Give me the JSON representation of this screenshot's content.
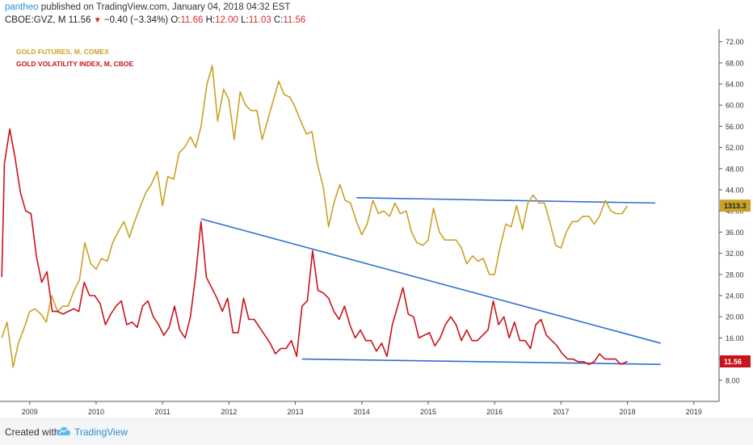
{
  "header": {
    "publisher": "pantheo",
    "published_text": " published on TradingView.com, January 04, 2018 04:32 EST",
    "symbol": "CBOE:GVZ, M",
    "last": "11.56",
    "change": "−0.40 (−3.34%)",
    "o_label": "O:",
    "o_value": "11.66",
    "h_label": "H:",
    "h_value": "12.00",
    "l_label": "L:",
    "l_value": "11.03",
    "c_label": "C:",
    "c_value": "11.56"
  },
  "footer": {
    "created_with": "Created with",
    "brand": "TradingView"
  },
  "chart_data": {
    "type": "line",
    "grid": false,
    "legend_position": "top-left",
    "xlim": [
      2008.55,
      2019.2
    ],
    "ylim": [
      4,
      74
    ],
    "yticks": [
      "8.00",
      "12.00",
      "16.00",
      "20.00",
      "24.00",
      "28.00",
      "32.00",
      "36.00",
      "40.00",
      "44.00",
      "48.00",
      "52.00",
      "56.00",
      "60.00",
      "64.00",
      "68.00",
      "72.00"
    ],
    "xticks": [
      "2009",
      "2010",
      "2011",
      "2012",
      "2013",
      "2014",
      "2015",
      "2016",
      "2017",
      "2018",
      "2019"
    ],
    "xtick_positions": [
      2009,
      2010,
      2011,
      2012,
      2013,
      2014,
      2015,
      2016,
      2017,
      2018,
      2019
    ],
    "colors": {
      "gold": "#c9a227",
      "gvz": "#c8141b",
      "trend": "#2f6fd1",
      "axis": "#555555"
    },
    "series": [
      {
        "name": "GOLD FUTURES, M, COMEX",
        "color": "#c9a227",
        "last_label": "1313.3",
        "points": [
          [
            2008.58,
            16.0
          ],
          [
            2008.66,
            19.0
          ],
          [
            2008.75,
            10.5
          ],
          [
            2008.83,
            15.0
          ],
          [
            2008.92,
            18.0
          ],
          [
            2009.0,
            21.0
          ],
          [
            2009.08,
            21.5
          ],
          [
            2009.17,
            20.5
          ],
          [
            2009.25,
            19.0
          ],
          [
            2009.33,
            24.0
          ],
          [
            2009.42,
            21.0
          ],
          [
            2009.5,
            22.0
          ],
          [
            2009.58,
            22.0
          ],
          [
            2009.67,
            25.0
          ],
          [
            2009.75,
            27.0
          ],
          [
            2009.83,
            34.0
          ],
          [
            2009.92,
            30.0
          ],
          [
            2010.0,
            29.0
          ],
          [
            2010.08,
            31.0
          ],
          [
            2010.17,
            30.5
          ],
          [
            2010.25,
            34.0
          ],
          [
            2010.33,
            36.0
          ],
          [
            2010.42,
            38.0
          ],
          [
            2010.5,
            35.0
          ],
          [
            2010.58,
            38.0
          ],
          [
            2010.67,
            41.0
          ],
          [
            2010.75,
            43.5
          ],
          [
            2010.83,
            45.0
          ],
          [
            2010.92,
            47.5
          ],
          [
            2011.0,
            41.0
          ],
          [
            2011.08,
            46.5
          ],
          [
            2011.17,
            46.0
          ],
          [
            2011.25,
            51.0
          ],
          [
            2011.33,
            52.0
          ],
          [
            2011.42,
            54.0
          ],
          [
            2011.5,
            52.0
          ],
          [
            2011.58,
            56.0
          ],
          [
            2011.67,
            64.0
          ],
          [
            2011.75,
            67.5
          ],
          [
            2011.83,
            57.0
          ],
          [
            2011.92,
            63.0
          ],
          [
            2012.0,
            61.0
          ],
          [
            2012.08,
            53.5
          ],
          [
            2012.17,
            62.5
          ],
          [
            2012.25,
            60.0
          ],
          [
            2012.33,
            59.0
          ],
          [
            2012.42,
            59.0
          ],
          [
            2012.5,
            53.5
          ],
          [
            2012.58,
            57.0
          ],
          [
            2012.67,
            61.0
          ],
          [
            2012.75,
            64.5
          ],
          [
            2012.83,
            62.0
          ],
          [
            2012.92,
            61.5
          ],
          [
            2013.0,
            59.5
          ],
          [
            2013.08,
            57.0
          ],
          [
            2013.17,
            54.5
          ],
          [
            2013.25,
            55.0
          ],
          [
            2013.33,
            49.0
          ],
          [
            2013.42,
            44.5
          ],
          [
            2013.5,
            37.0
          ],
          [
            2013.58,
            41.5
          ],
          [
            2013.67,
            45.0
          ],
          [
            2013.75,
            42.0
          ],
          [
            2013.83,
            41.5
          ],
          [
            2013.92,
            38.0
          ],
          [
            2014.0,
            35.5
          ],
          [
            2014.08,
            37.5
          ],
          [
            2014.17,
            42.0
          ],
          [
            2014.25,
            39.5
          ],
          [
            2014.33,
            40.0
          ],
          [
            2014.42,
            39.0
          ],
          [
            2014.5,
            41.5
          ],
          [
            2014.58,
            39.5
          ],
          [
            2014.67,
            40.0
          ],
          [
            2014.75,
            36.0
          ],
          [
            2014.83,
            34.0
          ],
          [
            2014.92,
            33.5
          ],
          [
            2015.0,
            34.5
          ],
          [
            2015.08,
            40.5
          ],
          [
            2015.17,
            36.0
          ],
          [
            2015.25,
            34.5
          ],
          [
            2015.33,
            34.5
          ],
          [
            2015.42,
            34.5
          ],
          [
            2015.5,
            33.0
          ],
          [
            2015.58,
            30.0
          ],
          [
            2015.67,
            31.5
          ],
          [
            2015.75,
            30.5
          ],
          [
            2015.83,
            31.0
          ],
          [
            2015.92,
            28.0
          ],
          [
            2016.0,
            28.0
          ],
          [
            2016.08,
            33.0
          ],
          [
            2016.17,
            37.5
          ],
          [
            2016.25,
            37.0
          ],
          [
            2016.33,
            41.0
          ],
          [
            2016.42,
            36.5
          ],
          [
            2016.5,
            41.5
          ],
          [
            2016.58,
            43.0
          ],
          [
            2016.67,
            41.5
          ],
          [
            2016.75,
            41.5
          ],
          [
            2016.83,
            38.0
          ],
          [
            2016.92,
            33.5
          ],
          [
            2017.0,
            33.0
          ],
          [
            2017.08,
            36.0
          ],
          [
            2017.17,
            38.0
          ],
          [
            2017.25,
            38.0
          ],
          [
            2017.33,
            39.0
          ],
          [
            2017.42,
            39.0
          ],
          [
            2017.5,
            37.5
          ],
          [
            2017.58,
            39.0
          ],
          [
            2017.67,
            42.0
          ],
          [
            2017.75,
            40.0
          ],
          [
            2017.83,
            39.5
          ],
          [
            2017.92,
            39.5
          ],
          [
            2018.0,
            41.0
          ]
        ]
      },
      {
        "name": "GOLD VOLATILITY INDEX, M, CBOE",
        "color": "#c8141b",
        "last_label": "11.56",
        "points": [
          [
            2008.58,
            27.5
          ],
          [
            2008.62,
            49.0
          ],
          [
            2008.7,
            55.5
          ],
          [
            2008.78,
            50.0
          ],
          [
            2008.86,
            43.5
          ],
          [
            2008.94,
            40.0
          ],
          [
            2009.02,
            39.5
          ],
          [
            2009.1,
            31.5
          ],
          [
            2009.18,
            26.5
          ],
          [
            2009.26,
            28.5
          ],
          [
            2009.34,
            21.0
          ],
          [
            2009.42,
            21.0
          ],
          [
            2009.5,
            20.5
          ],
          [
            2009.58,
            21.0
          ],
          [
            2009.66,
            21.5
          ],
          [
            2009.74,
            21.0
          ],
          [
            2009.82,
            26.5
          ],
          [
            2009.9,
            24.0
          ],
          [
            2009.98,
            24.0
          ],
          [
            2010.06,
            22.5
          ],
          [
            2010.14,
            18.5
          ],
          [
            2010.22,
            20.5
          ],
          [
            2010.3,
            22.0
          ],
          [
            2010.38,
            23.0
          ],
          [
            2010.46,
            18.5
          ],
          [
            2010.54,
            19.0
          ],
          [
            2010.62,
            18.0
          ],
          [
            2010.7,
            22.0
          ],
          [
            2010.78,
            23.0
          ],
          [
            2010.86,
            20.0
          ],
          [
            2010.94,
            18.5
          ],
          [
            2011.02,
            16.5
          ],
          [
            2011.1,
            18.0
          ],
          [
            2011.18,
            22.0
          ],
          [
            2011.26,
            17.5
          ],
          [
            2011.34,
            16.0
          ],
          [
            2011.42,
            20.0
          ],
          [
            2011.5,
            28.0
          ],
          [
            2011.58,
            38.0
          ],
          [
            2011.66,
            27.5
          ],
          [
            2011.74,
            25.5
          ],
          [
            2011.82,
            23.5
          ],
          [
            2011.9,
            21.0
          ],
          [
            2011.98,
            23.5
          ],
          [
            2012.06,
            17.0
          ],
          [
            2012.14,
            17.0
          ],
          [
            2012.22,
            23.5
          ],
          [
            2012.3,
            19.5
          ],
          [
            2012.38,
            19.5
          ],
          [
            2012.46,
            18.0
          ],
          [
            2012.54,
            16.5
          ],
          [
            2012.62,
            15.0
          ],
          [
            2012.7,
            13.0
          ],
          [
            2012.78,
            14.0
          ],
          [
            2012.86,
            14.0
          ],
          [
            2012.94,
            15.5
          ],
          [
            2013.02,
            12.5
          ],
          [
            2013.1,
            22.0
          ],
          [
            2013.18,
            23.0
          ],
          [
            2013.26,
            32.5
          ],
          [
            2013.34,
            25.0
          ],
          [
            2013.42,
            24.5
          ],
          [
            2013.5,
            23.5
          ],
          [
            2013.58,
            21.0
          ],
          [
            2013.66,
            19.5
          ],
          [
            2013.74,
            22.0
          ],
          [
            2013.82,
            18.5
          ],
          [
            2013.9,
            16.0
          ],
          [
            2013.98,
            17.5
          ],
          [
            2014.06,
            15.5
          ],
          [
            2014.14,
            15.5
          ],
          [
            2014.22,
            13.5
          ],
          [
            2014.3,
            15.0
          ],
          [
            2014.38,
            12.5
          ],
          [
            2014.46,
            18.5
          ],
          [
            2014.54,
            22.0
          ],
          [
            2014.62,
            25.5
          ],
          [
            2014.7,
            20.5
          ],
          [
            2014.78,
            20.0
          ],
          [
            2014.86,
            16.0
          ],
          [
            2014.94,
            16.5
          ],
          [
            2015.02,
            17.0
          ],
          [
            2015.1,
            14.5
          ],
          [
            2015.18,
            16.0
          ],
          [
            2015.26,
            18.5
          ],
          [
            2015.34,
            20.0
          ],
          [
            2015.42,
            18.5
          ],
          [
            2015.5,
            15.5
          ],
          [
            2015.58,
            17.5
          ],
          [
            2015.66,
            15.5
          ],
          [
            2015.74,
            15.5
          ],
          [
            2015.82,
            16.5
          ],
          [
            2015.9,
            17.5
          ],
          [
            2015.98,
            23.0
          ],
          [
            2016.06,
            18.5
          ],
          [
            2016.14,
            20.0
          ],
          [
            2016.22,
            16.0
          ],
          [
            2016.3,
            19.0
          ],
          [
            2016.38,
            15.5
          ],
          [
            2016.46,
            15.5
          ],
          [
            2016.54,
            14.0
          ],
          [
            2016.62,
            18.5
          ],
          [
            2016.7,
            19.5
          ],
          [
            2016.78,
            16.5
          ],
          [
            2016.86,
            15.5
          ],
          [
            2016.94,
            14.5
          ],
          [
            2017.02,
            13.0
          ],
          [
            2017.1,
            12.0
          ],
          [
            2017.18,
            12.0
          ],
          [
            2017.26,
            11.5
          ],
          [
            2017.34,
            11.5
          ],
          [
            2017.42,
            11.0
          ],
          [
            2017.5,
            11.5
          ],
          [
            2017.58,
            13.0
          ],
          [
            2017.66,
            12.0
          ],
          [
            2017.74,
            12.0
          ],
          [
            2017.82,
            12.0
          ],
          [
            2017.9,
            11.0
          ],
          [
            2018.0,
            11.56
          ]
        ]
      }
    ],
    "trendlines": [
      {
        "from": [
          2011.58,
          38.5
        ],
        "to": [
          2018.5,
          15.0
        ]
      },
      {
        "from": [
          2013.1,
          12.0
        ],
        "to": [
          2018.5,
          11.0
        ]
      },
      {
        "from": [
          2013.92,
          42.5
        ],
        "to": [
          2018.42,
          41.5
        ]
      }
    ]
  }
}
